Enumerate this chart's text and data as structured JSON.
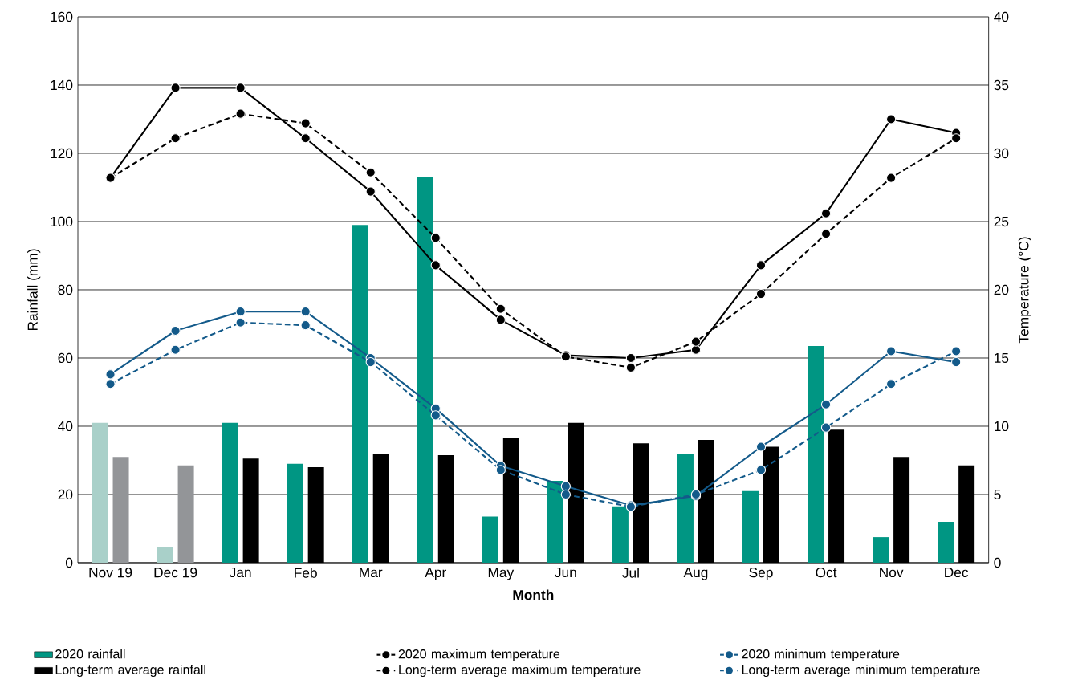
{
  "chart_data": {
    "type": "bar",
    "xlabel": "Month",
    "ylabel": "Rainfall (mm)",
    "y2label": "Temperature (°C)",
    "categories": [
      "Nov 19",
      "Dec 19",
      "Jan",
      "Feb",
      "Mar",
      "Apr",
      "May",
      "Jun",
      "Jul",
      "Aug",
      "Sep",
      "Oct",
      "Nov",
      "Dec"
    ],
    "series": [
      {
        "name": "2020 rainfall",
        "color": "#009683",
        "colors": [
          "#a9d0c9",
          "#a9d0c9",
          "#009683",
          "#009683",
          "#009683",
          "#009683",
          "#009683",
          "#009683",
          "#009683",
          "#009683",
          "#009683",
          "#009683",
          "#009683",
          "#009683"
        ],
        "values": [
          41,
          4.5,
          41,
          29,
          99,
          113,
          13.5,
          24,
          16.5,
          32,
          21,
          63.5,
          7.5,
          12
        ]
      },
      {
        "name": "2020 maximum temperature",
        "type": "line",
        "axis": "y2",
        "color": "#000000",
        "line_style": "solid",
        "values": [
          28.2,
          34.8,
          34.8,
          31.1,
          27.2,
          21.8,
          17.8,
          15.2,
          15.0,
          15.6,
          21.8,
          25.6,
          32.5,
          31.5
        ]
      },
      {
        "name": "2020 minimum temperature",
        "type": "line",
        "axis": "y2",
        "color": "#135a8a",
        "line_style": "solid",
        "values": [
          13.8,
          17.0,
          18.4,
          18.4,
          15.0,
          11.3,
          7.1,
          5.6,
          4.2,
          4.9,
          8.5,
          11.6,
          15.5,
          14.7
        ]
      },
      {
        "name": "Long-term average rainfall",
        "color": "#000000",
        "colors": [
          "#939598",
          "#939598",
          "#000000",
          "#000000",
          "#000000",
          "#000000",
          "#000000",
          "#000000",
          "#000000",
          "#000000",
          "#000000",
          "#000000",
          "#000000",
          "#000000"
        ],
        "values": [
          31,
          28.5,
          30.5,
          28,
          32,
          31.5,
          36.5,
          41,
          35,
          36,
          34,
          39,
          31,
          28.5
        ]
      },
      {
        "name": "Long-term average maximum temperature",
        "type": "line",
        "axis": "y2",
        "color": "#000000",
        "line_style": "dashed",
        "values": [
          28.2,
          31.1,
          32.9,
          32.2,
          28.6,
          23.8,
          18.6,
          15.1,
          14.3,
          16.2,
          19.7,
          24.1,
          28.2,
          31.1
        ]
      },
      {
        "name": "Long-term average minimum temperature",
        "type": "line",
        "axis": "y2",
        "color": "#135a8a",
        "line_style": "dashed",
        "values": [
          13.1,
          15.6,
          17.6,
          17.4,
          14.7,
          10.8,
          6.8,
          5.0,
          4.1,
          5.0,
          6.8,
          9.9,
          13.1,
          15.5
        ]
      }
    ],
    "ylim": [
      0,
      160
    ],
    "yticks": [
      0,
      20,
      40,
      60,
      80,
      100,
      120,
      140,
      160
    ],
    "y2lim": [
      0,
      40
    ],
    "y2ticks": [
      0,
      5,
      10,
      15,
      20,
      25,
      30,
      35,
      40
    ],
    "grid": "y",
    "legend": "bottom",
    "marker": "circle"
  }
}
